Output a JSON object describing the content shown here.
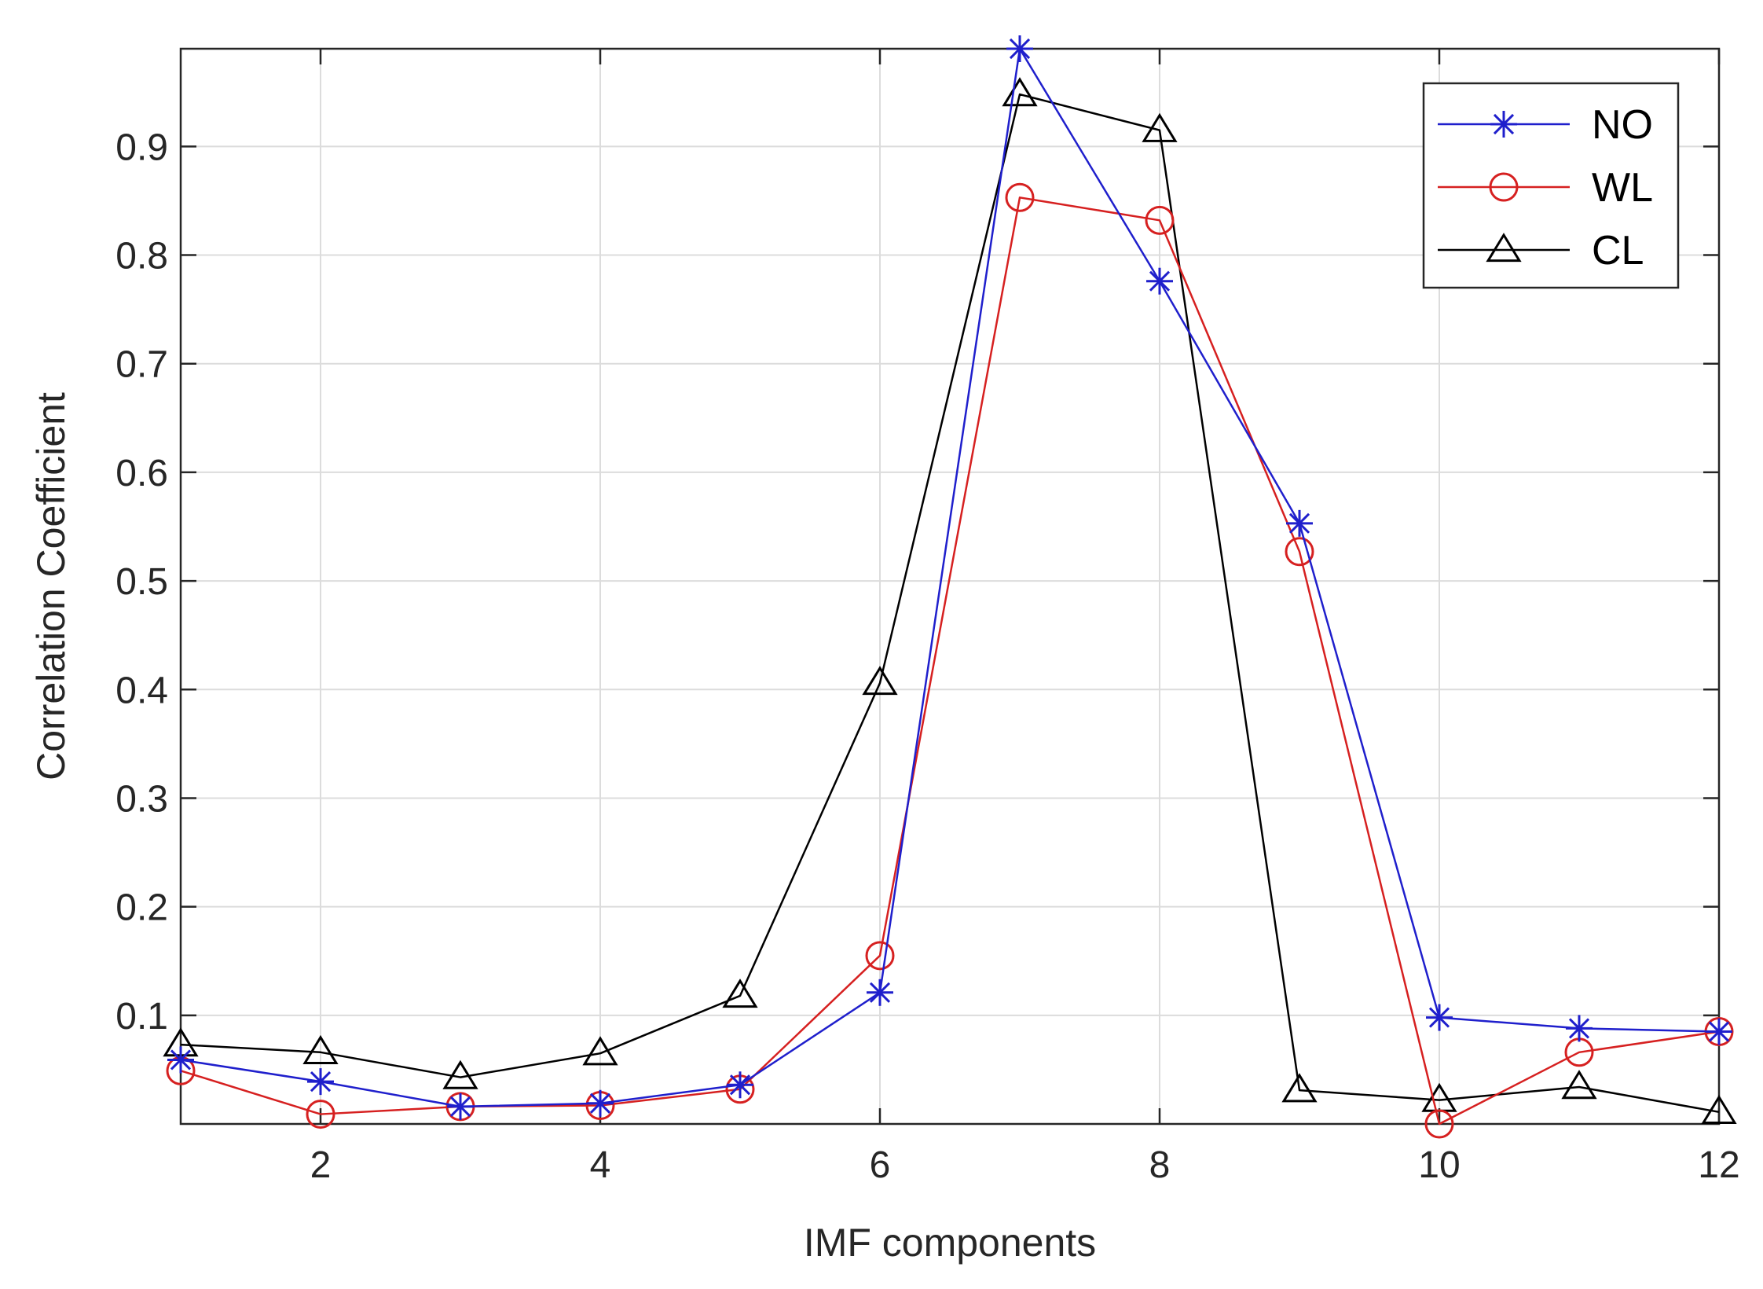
{
  "chart_data": {
    "type": "line",
    "title": "",
    "xlabel": "IMF components",
    "ylabel": "Correlation Coefficient",
    "xlim": [
      1,
      12
    ],
    "ylim": [
      0,
      0.99
    ],
    "xticks": [
      2,
      4,
      6,
      8,
      10,
      12
    ],
    "yticks": [
      0.1,
      0.2,
      0.3,
      0.4,
      0.5,
      0.6,
      0.7,
      0.8,
      0.9
    ],
    "xtick_labels": [
      "2",
      "4",
      "6",
      "8",
      "10",
      "12"
    ],
    "ytick_labels": [
      "0.1",
      "0.2",
      "0.3",
      "0.4",
      "0.5",
      "0.6",
      "0.7",
      "0.8",
      "0.9"
    ],
    "grid": true,
    "legend_position": "top-right",
    "x": [
      1,
      2,
      3,
      4,
      5,
      6,
      7,
      8,
      9,
      10,
      11,
      12
    ],
    "series": [
      {
        "name": "NO",
        "color": "#1f1fcc",
        "marker": "asterisk",
        "values": [
          0.059,
          0.039,
          0.016,
          0.019,
          0.036,
          0.121,
          0.99,
          0.776,
          0.553,
          0.098,
          0.088,
          0.085
        ]
      },
      {
        "name": "WL",
        "color": "#d62020",
        "marker": "circle",
        "values": [
          0.049,
          0.009,
          0.016,
          0.017,
          0.032,
          0.155,
          0.853,
          0.832,
          0.527,
          0.0,
          0.066,
          0.085
        ]
      },
      {
        "name": "CL",
        "color": "#000000",
        "marker": "triangle",
        "values": [
          0.073,
          0.066,
          0.043,
          0.065,
          0.118,
          0.406,
          0.948,
          0.915,
          0.031,
          0.022,
          0.034,
          0.011
        ]
      }
    ]
  }
}
